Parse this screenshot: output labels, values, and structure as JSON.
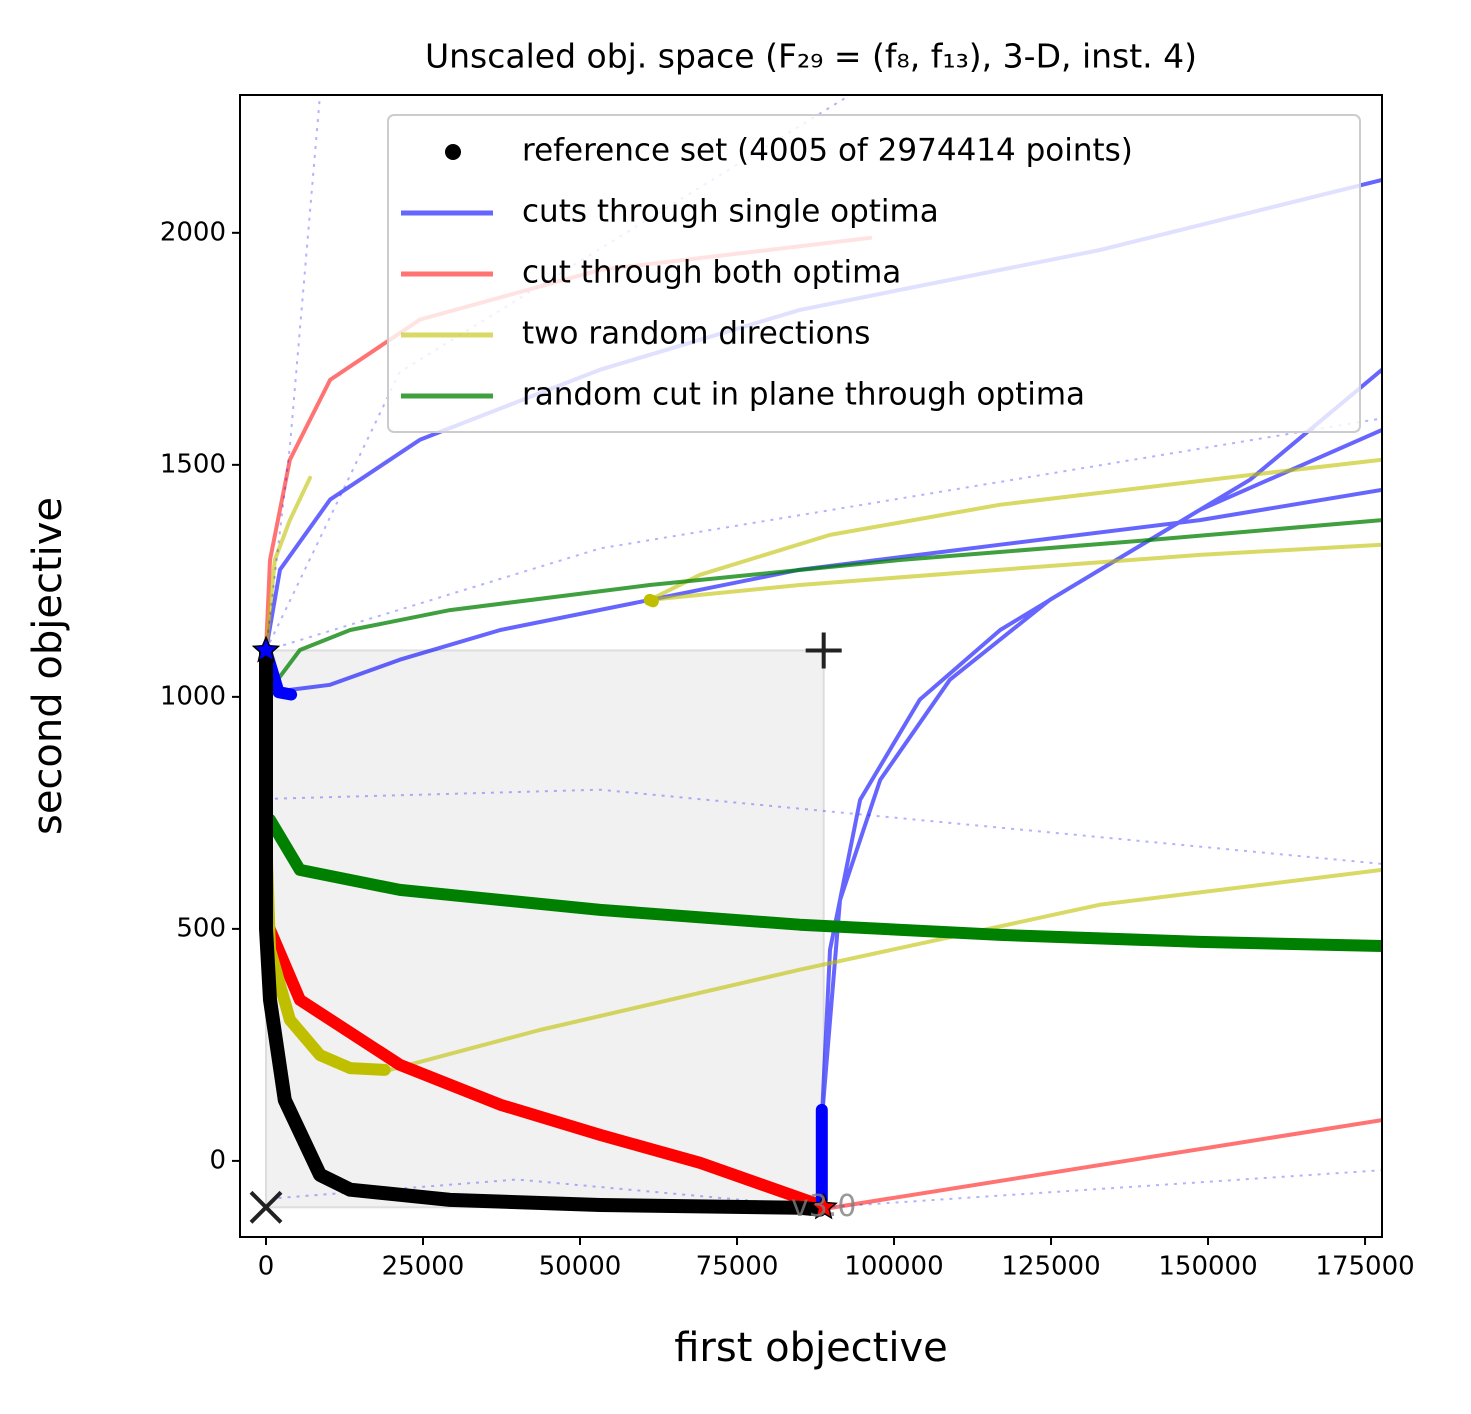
{
  "chart_data": {
    "type": "line",
    "title": "Unscaled obj. space (F₂₉ = (f₈, f₁₃), 3-D, inst. 4)",
    "x_label": "first objective",
    "y_label": "second objective",
    "xlim": [
      -4140,
      177700
    ],
    "ylim": [
      -164,
      2297
    ],
    "xticks": [
      0,
      25000,
      50000,
      75000,
      100000,
      125000,
      150000,
      175000
    ],
    "yticks": [
      0,
      500,
      1000,
      1500,
      2000
    ],
    "legend": "upper right",
    "region": {
      "color": "#f1f1f1",
      "x": [
        0,
        88800
      ],
      "y": [
        -100,
        1100
      ]
    },
    "series": [
      {
        "name": "reference set (4005 of 2974414 points)",
        "color": "#000000",
        "marker": "o",
        "x": [
          0,
          0,
          0,
          640,
          3000,
          8600,
          13400,
          29300,
          53200,
          85000,
          88200
        ],
        "values": [
          1100,
          1000,
          500,
          347,
          131,
          -30,
          -62,
          -84,
          -95,
          -101,
          -105
        ]
      },
      {
        "name": "cuts through single optima",
        "color": "#0000ff",
        "alpha": 0.6,
        "linewidth": 4,
        "x": [
          0,
          2230,
          10200,
          24500,
          53200,
          85000,
          132800,
          177700,
          null,
          3800,
          10200,
          21300,
          37300,
          61100,
          85000,
          116900,
          148700,
          177700,
          null,
          88500,
          89800,
          94600,
          104100,
          116900,
          132800,
          156700,
          177700,
          null,
          88500,
          91400,
          97800,
          108900,
          124800,
          148700,
          177700
        ],
        "values": [
          1100,
          1274,
          1425,
          1554,
          1705,
          1834,
          1963,
          2114,
          null,
          1015,
          1026,
          1080,
          1144,
          1209,
          1274,
          1328,
          1381,
          1446,
          null,
          88,
          455,
          778,
          994,
          1144,
          1274,
          1468,
          1705,
          null,
          88,
          562,
          821,
          1037,
          1209,
          1403,
          1575
        ]
      },
      {
        "name": "cut through both optima",
        "color": "#ff0000",
        "alpha": 0.55,
        "linewidth": 4,
        "x": [
          0,
          640,
          3800,
          10200,
          24500,
          53200,
          96200,
          null,
          88200,
          177700
        ],
        "values": [
          1100,
          1295,
          1511,
          1683,
          1813,
          1920,
          1989,
          null,
          -105,
          88
        ]
      },
      {
        "name": "two random directions",
        "color": "#bfbf00",
        "alpha": 0.6,
        "linewidth": 4,
        "x": [
          0,
          1400,
          3800,
          7000,
          null,
          19700,
          43600,
          85000,
          132800,
          177700,
          null,
          61100,
          85000,
          116900,
          148700,
          177700,
          null,
          61100,
          69100,
          89800,
          116900,
          156700,
          177700
        ],
        "values": [
          1100,
          1295,
          1381,
          1472,
          null,
          196,
          282,
          412,
          552,
          627,
          null,
          1209,
          1241,
          1274,
          1306,
          1328,
          null,
          1209,
          1263,
          1349,
          1414,
          1478,
          1511
        ]
      },
      {
        "name": "random cut in plane through optima",
        "color": "#008000",
        "alpha": 0.75,
        "linewidth": 4,
        "x": [
          640,
          5400,
          13400,
          29300,
          61100,
          100900,
          140700,
          177700
        ],
        "values": [
          1015,
          1101,
          1144,
          1187,
          1241,
          1295,
          1338,
          1381
        ]
      },
      {
        "color": "#0000ff",
        "alpha": 0.3,
        "linewidth": 2,
        "dash": "dotted",
        "x": [
          0,
          3800,
          8600,
          null,
          0,
          21300,
          93000,
          null,
          0,
          53200,
          177700,
          null,
          0,
          53200,
          177700,
          null,
          88800,
          177700,
          null,
          2000,
          40000,
          88800
        ],
        "values": [
          1100,
          1540,
          2297,
          null,
          1100,
          1700,
          2297,
          null,
          1100,
          1320,
          1600,
          null,
          780,
          800,
          640,
          null,
          -100,
          -20,
          null,
          -80,
          -40,
          -100
        ]
      },
      {
        "color": "#ff0000",
        "linewidth": 12,
        "x": [
          0,
          0,
          null,
          640,
          5400,
          21300,
          37300,
          53200,
          69100,
          88200
        ],
        "values": [
          1100,
          960,
          null,
          498,
          347,
          207,
          121,
          56,
          -4,
          -95
        ]
      },
      {
        "color": "#008000",
        "linewidth": 12,
        "x": [
          0,
          0,
          null,
          640,
          5400,
          21300,
          53200,
          85000,
          116900,
          148700,
          177700
        ],
        "values": [
          1015,
          870,
          null,
          735,
          627,
          584,
          541,
          509,
          487,
          472,
          463
        ]
      },
      {
        "color": "#bfbf00",
        "linewidth": 12,
        "x": [
          0,
          640,
          3800,
          8600,
          13400,
          18900,
          null,
          61100,
          61600
        ],
        "values": [
          713,
          455,
          304,
          228,
          200,
          196,
          null,
          1209,
          1206
        ]
      },
      {
        "color": "#0000ff",
        "linewidth": 12,
        "x": [
          0,
          2000,
          4000,
          null,
          88500,
          88500
        ],
        "values": [
          1100,
          1010,
          1005,
          null,
          110,
          -84
        ]
      }
    ],
    "points": [
      {
        "x": 0,
        "y": 1100,
        "marker": "star",
        "color": "#0000ff"
      },
      {
        "x": 88800,
        "y": -100,
        "marker": "star",
        "color": "#ff0000"
      },
      {
        "x": 88800,
        "y": 1100,
        "marker": "plus",
        "color": "#222222"
      },
      {
        "x": 0,
        "y": -100,
        "marker": "x",
        "color": "#222222"
      }
    ],
    "annotation": {
      "text": "v3.0",
      "x": 88800,
      "y": -100
    }
  }
}
